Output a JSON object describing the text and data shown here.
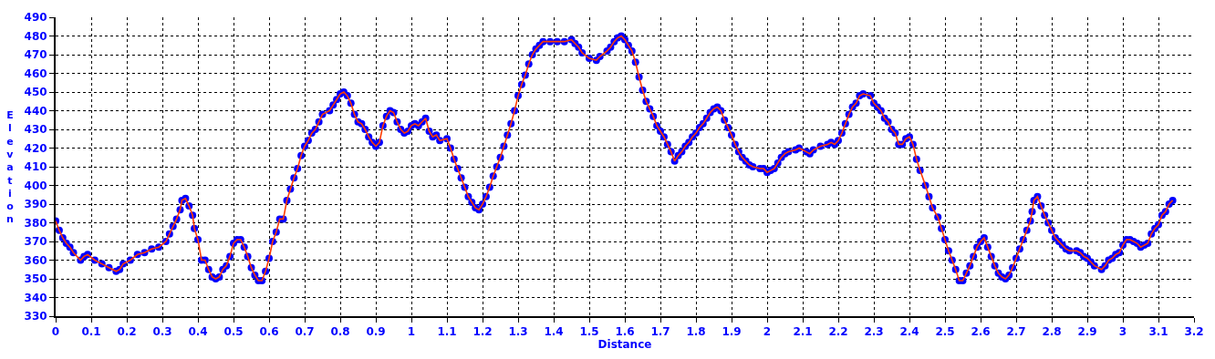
{
  "chart_data": {
    "type": "line",
    "xlabel": "Distance",
    "ylabel": "Elevation",
    "xlim": [
      0,
      3.2
    ],
    "xticks": [
      0,
      0.1,
      0.2,
      0.3,
      0.4,
      0.5,
      0.6,
      0.7,
      0.8,
      0.9,
      1,
      1.1,
      1.2,
      1.3,
      1.4,
      1.5,
      1.6,
      1.7,
      1.8,
      1.9,
      2,
      2.1,
      2.2,
      2.3,
      2.4,
      2.5,
      2.6,
      2.7,
      2.8,
      2.9,
      3,
      3.1,
      3.2
    ],
    "ylim": [
      330,
      490
    ],
    "yticks": [
      330,
      340,
      350,
      360,
      370,
      380,
      390,
      400,
      410,
      420,
      430,
      440,
      450,
      460,
      470,
      480,
      490
    ],
    "grid": true,
    "marker": "circle",
    "line_style": "solid",
    "series": [
      {
        "color": "#0000ff",
        "x": [
          0,
          0.01,
          0.02,
          0.03,
          0.04,
          0.05,
          0.07,
          0.08,
          0.09,
          0.11,
          0.13,
          0.15,
          0.17,
          0.18,
          0.19,
          0.21,
          0.23,
          0.25,
          0.27,
          0.29,
          0.31,
          0.32,
          0.33,
          0.34,
          0.35,
          0.355,
          0.365,
          0.375,
          0.385,
          0.39,
          0.4,
          0.41,
          0.42,
          0.43,
          0.44,
          0.45,
          0.46,
          0.47,
          0.48,
          0.49,
          0.5,
          0.51,
          0.52,
          0.53,
          0.54,
          0.55,
          0.56,
          0.57,
          0.58,
          0.59,
          0.6,
          0.61,
          0.62,
          0.63,
          0.64,
          0.65,
          0.66,
          0.67,
          0.68,
          0.69,
          0.7,
          0.71,
          0.72,
          0.73,
          0.74,
          0.75,
          0.77,
          0.78,
          0.79,
          0.8,
          0.81,
          0.82,
          0.83,
          0.84,
          0.85,
          0.86,
          0.87,
          0.88,
          0.89,
          0.9,
          0.91,
          0.92,
          0.93,
          0.94,
          0.95,
          0.96,
          0.97,
          0.98,
          0.99,
          1,
          1.01,
          1.02,
          1.03,
          1.04,
          1.05,
          1.06,
          1.07,
          1.08,
          1.1,
          1.11,
          1.12,
          1.13,
          1.14,
          1.15,
          1.16,
          1.17,
          1.18,
          1.19,
          1.2,
          1.21,
          1.22,
          1.23,
          1.24,
          1.25,
          1.26,
          1.27,
          1.28,
          1.29,
          1.3,
          1.31,
          1.32,
          1.33,
          1.34,
          1.35,
          1.36,
          1.37,
          1.39,
          1.41,
          1.43,
          1.45,
          1.46,
          1.47,
          1.48,
          1.5,
          1.52,
          1.53,
          1.55,
          1.56,
          1.57,
          1.58,
          1.59,
          1.6,
          1.61,
          1.62,
          1.63,
          1.64,
          1.65,
          1.66,
          1.67,
          1.68,
          1.69,
          1.7,
          1.71,
          1.72,
          1.73,
          1.74,
          1.75,
          1.76,
          1.77,
          1.78,
          1.79,
          1.8,
          1.81,
          1.82,
          1.83,
          1.84,
          1.85,
          1.86,
          1.87,
          1.88,
          1.89,
          1.9,
          1.91,
          1.92,
          1.93,
          1.94,
          1.95,
          1.96,
          1.98,
          1.99,
          2,
          2.01,
          2.02,
          2.03,
          2.04,
          2.05,
          2.06,
          2.08,
          2.09,
          2.11,
          2.12,
          2.13,
          2.15,
          2.17,
          2.18,
          2.19,
          2.2,
          2.21,
          2.22,
          2.23,
          2.24,
          2.25,
          2.26,
          2.27,
          2.29,
          2.3,
          2.31,
          2.32,
          2.33,
          2.34,
          2.35,
          2.36,
          2.37,
          2.38,
          2.39,
          2.4,
          2.41,
          2.42,
          2.43,
          2.445,
          2.455,
          2.465,
          2.48,
          2.49,
          2.5,
          2.51,
          2.52,
          2.53,
          2.54,
          2.55,
          2.56,
          2.57,
          2.58,
          2.59,
          2.6,
          2.61,
          2.62,
          2.63,
          2.64,
          2.65,
          2.66,
          2.67,
          2.68,
          2.69,
          2.7,
          2.71,
          2.72,
          2.73,
          2.74,
          2.745,
          2.75,
          2.76,
          2.77,
          2.78,
          2.79,
          2.8,
          2.81,
          2.82,
          2.83,
          2.84,
          2.85,
          2.87,
          2.88,
          2.89,
          2.9,
          2.91,
          2.92,
          2.94,
          2.95,
          2.96,
          2.97,
          2.98,
          2.99,
          3,
          3.01,
          3.02,
          3.03,
          3.04,
          3.05,
          3.06,
          3.07,
          3.08,
          3.09,
          3.1,
          3.11,
          3.12,
          3.13,
          3.14
        ],
        "values": [
          381,
          376,
          372,
          369,
          367,
          364,
          360,
          362,
          363,
          360,
          358,
          356,
          354,
          355,
          358,
          360,
          363,
          364,
          366,
          367,
          370,
          374,
          378,
          382,
          387,
          392,
          393,
          389,
          384,
          377,
          371,
          360,
          360,
          355,
          351,
          350,
          351,
          355,
          357,
          362,
          369,
          371,
          371,
          367,
          362,
          356,
          352,
          349,
          349,
          354,
          361,
          370,
          375,
          382,
          382,
          392,
          398,
          404,
          409,
          416,
          421,
          424,
          428,
          430,
          434,
          438,
          440,
          443,
          446,
          449,
          450,
          448,
          444,
          438,
          434,
          433,
          430,
          426,
          423,
          421,
          423,
          432,
          437,
          440,
          439,
          434,
          430,
          428,
          429,
          432,
          433,
          432,
          434,
          436,
          429,
          426,
          427,
          424,
          425,
          420,
          414,
          409,
          404,
          399,
          394,
          391,
          388,
          387,
          390,
          394,
          399,
          405,
          410,
          415,
          421,
          427,
          433,
          440,
          448,
          454,
          459,
          465,
          470,
          473,
          475,
          477,
          477,
          477,
          477,
          478,
          476,
          474,
          471,
          468,
          467,
          469,
          472,
          474,
          477,
          479,
          480,
          478,
          475,
          472,
          466,
          458,
          451,
          445,
          441,
          437,
          432,
          429,
          426,
          422,
          418,
          413,
          416,
          418,
          421,
          423,
          426,
          428,
          431,
          433,
          436,
          439,
          441,
          442,
          440,
          435,
          431,
          427,
          422,
          418,
          415,
          413,
          411,
          410,
          409,
          409,
          407,
          408,
          409,
          412,
          415,
          417,
          418,
          419,
          420,
          418,
          417,
          419,
          421,
          422,
          423,
          422,
          424,
          428,
          433,
          438,
          442,
          444,
          448,
          449,
          448,
          444,
          442,
          440,
          436,
          434,
          430,
          428,
          422,
          422,
          425,
          426,
          422,
          414,
          408,
          400,
          394,
          388,
          383,
          377,
          371,
          365,
          360,
          355,
          349,
          349,
          353,
          357,
          362,
          367,
          370,
          372,
          367,
          362,
          357,
          353,
          351,
          350,
          352,
          356,
          361,
          366,
          371,
          376,
          381,
          386,
          392,
          394,
          389,
          384,
          380,
          376,
          372,
          370,
          368,
          366,
          365,
          365,
          364,
          362,
          361,
          359,
          357,
          355,
          357,
          360,
          361,
          363,
          364,
          368,
          371,
          371,
          370,
          369,
          367,
          368,
          369,
          374,
          377,
          379,
          384,
          386,
          390,
          392
        ]
      }
    ]
  }
}
